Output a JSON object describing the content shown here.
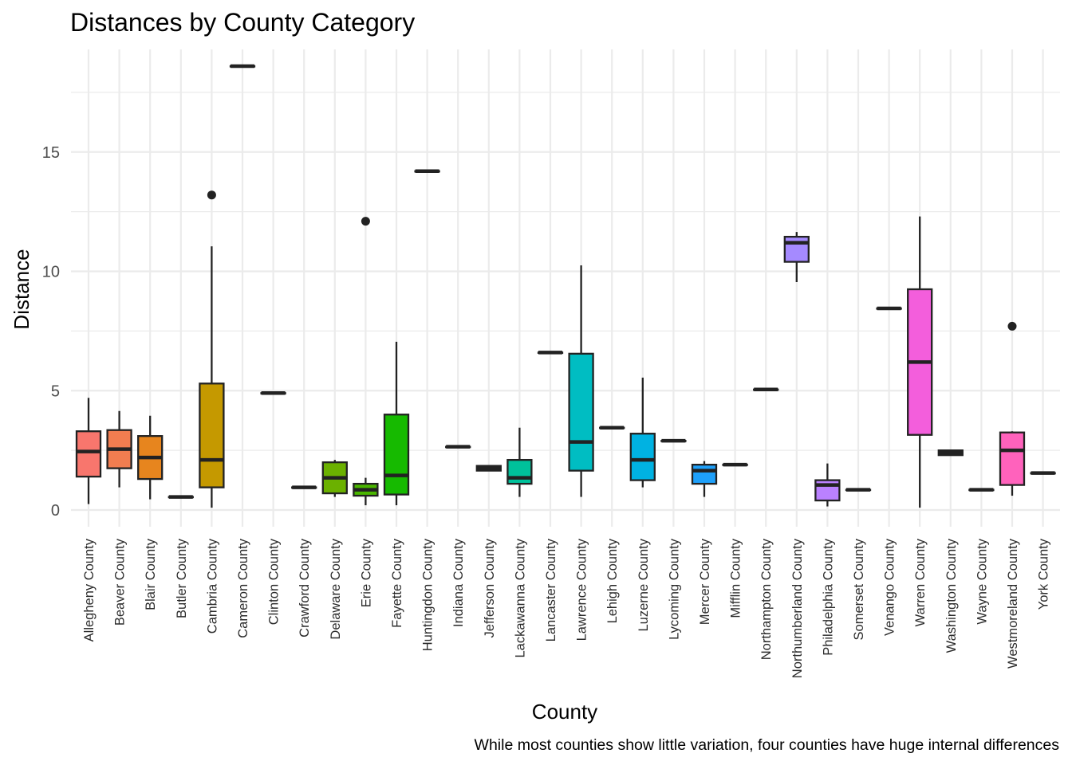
{
  "chart_data": {
    "type": "boxplot",
    "title": "Distances by County Category",
    "xlabel": "County",
    "ylabel": "Distance",
    "caption": "While most counties show little variation, four counties have huge internal differences",
    "ylim": [
      -0.7,
      19.3
    ],
    "yticks": [
      0,
      5,
      10,
      15
    ],
    "grid": true,
    "legend": "none",
    "series": [
      {
        "category": "Allegheny County",
        "fill": "#F8766D",
        "min": 0.25,
        "q1": 1.4,
        "median": 2.45,
        "q3": 3.3,
        "max": 4.7,
        "outliers": []
      },
      {
        "category": "Beaver County",
        "fill": "#F17D50",
        "min": 0.95,
        "q1": 1.75,
        "median": 2.55,
        "q3": 3.35,
        "max": 4.15,
        "outliers": []
      },
      {
        "category": "Blair County",
        "fill": "#E7851E",
        "min": 0.45,
        "q1": 1.3,
        "median": 2.2,
        "q3": 3.1,
        "max": 3.95,
        "outliers": []
      },
      {
        "category": "Butler County",
        "fill": "#D89000",
        "min": 0.55,
        "q1": 0.55,
        "median": 0.55,
        "q3": 0.55,
        "max": 0.55,
        "outliers": []
      },
      {
        "category": "Cambria County",
        "fill": "#C59900",
        "min": 0.1,
        "q1": 0.95,
        "median": 2.1,
        "q3": 5.3,
        "max": 11.05,
        "outliers": [
          13.2
        ]
      },
      {
        "category": "Cameron County",
        "fill": "#B0A100",
        "min": 18.6,
        "q1": 18.6,
        "median": 18.6,
        "q3": 18.6,
        "max": 18.6,
        "outliers": []
      },
      {
        "category": "Clinton County",
        "fill": "#97A900",
        "min": 4.9,
        "q1": 4.9,
        "median": 4.9,
        "q3": 4.9,
        "max": 4.9,
        "outliers": []
      },
      {
        "category": "Crawford County",
        "fill": "#86AD00",
        "min": 0.95,
        "q1": 0.95,
        "median": 0.95,
        "q3": 0.95,
        "max": 0.95,
        "outliers": []
      },
      {
        "category": "Delaware County",
        "fill": "#6BB100",
        "min": 0.55,
        "q1": 0.7,
        "median": 1.35,
        "q3": 2.0,
        "max": 2.1,
        "outliers": []
      },
      {
        "category": "Erie County",
        "fill": "#4AB600",
        "min": 0.2,
        "q1": 0.6,
        "median": 0.85,
        "q3": 1.1,
        "max": 1.35,
        "outliers": [
          12.1
        ]
      },
      {
        "category": "Fayette County",
        "fill": "#16BA00",
        "min": 0.2,
        "q1": 0.65,
        "median": 1.45,
        "q3": 4.0,
        "max": 7.05,
        "outliers": []
      },
      {
        "category": "Huntingdon County",
        "fill": "#00BC4F",
        "min": 14.2,
        "q1": 14.2,
        "median": 14.2,
        "q3": 14.2,
        "max": 14.2,
        "outliers": []
      },
      {
        "category": "Indiana County",
        "fill": "#00BE6C",
        "min": 2.65,
        "q1": 2.65,
        "median": 2.65,
        "q3": 2.65,
        "max": 2.65,
        "outliers": []
      },
      {
        "category": "Jefferson County",
        "fill": "#00C085",
        "min": 1.65,
        "q1": 1.65,
        "median": 1.75,
        "q3": 1.85,
        "max": 1.85,
        "outliers": []
      },
      {
        "category": "Lackawanna County",
        "fill": "#00C19B",
        "min": 0.55,
        "q1": 1.1,
        "median": 1.35,
        "q3": 2.1,
        "max": 3.45,
        "outliers": []
      },
      {
        "category": "Lancaster County",
        "fill": "#00C0AF",
        "min": 6.6,
        "q1": 6.6,
        "median": 6.6,
        "q3": 6.6,
        "max": 6.6,
        "outliers": []
      },
      {
        "category": "Lawrence County",
        "fill": "#00BDC2",
        "min": 0.55,
        "q1": 1.65,
        "median": 2.85,
        "q3": 6.55,
        "max": 10.25,
        "outliers": []
      },
      {
        "category": "Lehigh County",
        "fill": "#00B8D3",
        "min": 3.45,
        "q1": 3.45,
        "median": 3.45,
        "q3": 3.45,
        "max": 3.45,
        "outliers": []
      },
      {
        "category": "Luzerne County",
        "fill": "#00B2E2",
        "min": 0.95,
        "q1": 1.25,
        "median": 2.1,
        "q3": 3.2,
        "max": 5.55,
        "outliers": []
      },
      {
        "category": "Lycoming County",
        "fill": "#00AAEF",
        "min": 2.9,
        "q1": 2.9,
        "median": 2.9,
        "q3": 2.9,
        "max": 2.9,
        "outliers": []
      },
      {
        "category": "Mercer County",
        "fill": "#1EA0FA",
        "min": 0.55,
        "q1": 1.1,
        "median": 1.65,
        "q3": 1.9,
        "max": 2.05,
        "outliers": []
      },
      {
        "category": "Mifflin County",
        "fill": "#619CFF",
        "min": 1.9,
        "q1": 1.9,
        "median": 1.9,
        "q3": 1.9,
        "max": 1.9,
        "outliers": []
      },
      {
        "category": "Northampton County",
        "fill": "#8A93FF",
        "min": 5.05,
        "q1": 5.05,
        "median": 5.05,
        "q3": 5.05,
        "max": 5.05,
        "outliers": []
      },
      {
        "category": "Northumberland County",
        "fill": "#A58AFF",
        "min": 9.55,
        "q1": 10.4,
        "median": 11.2,
        "q3": 11.45,
        "max": 11.65,
        "outliers": []
      },
      {
        "category": "Philadelphia County",
        "fill": "#BA81FF",
        "min": 0.15,
        "q1": 0.4,
        "median": 1.05,
        "q3": 1.25,
        "max": 1.95,
        "outliers": []
      },
      {
        "category": "Somerset County",
        "fill": "#CC78FF",
        "min": 0.85,
        "q1": 0.85,
        "median": 0.85,
        "q3": 0.85,
        "max": 0.85,
        "outliers": []
      },
      {
        "category": "Venango County",
        "fill": "#DB72FB",
        "min": 8.45,
        "q1": 8.45,
        "median": 8.45,
        "q3": 8.45,
        "max": 8.45,
        "outliers": []
      },
      {
        "category": "Warren County",
        "fill": "#F35EDC",
        "min": 0.1,
        "q1": 3.15,
        "median": 6.2,
        "q3": 9.25,
        "max": 12.3,
        "outliers": []
      },
      {
        "category": "Washington County",
        "fill": "#F863D4",
        "min": 2.3,
        "q1": 2.3,
        "median": 2.4,
        "q3": 2.5,
        "max": 2.5,
        "outliers": []
      },
      {
        "category": "Wayne County",
        "fill": "#FD61D1",
        "min": 0.85,
        "q1": 0.85,
        "median": 0.85,
        "q3": 0.85,
        "max": 0.85,
        "outliers": []
      },
      {
        "category": "Westmoreland County",
        "fill": "#FF62BC",
        "min": 0.6,
        "q1": 1.05,
        "median": 2.5,
        "q3": 3.25,
        "max": 3.3,
        "outliers": [
          7.7
        ]
      },
      {
        "category": "York County",
        "fill": "#FF6C91",
        "min": 1.55,
        "q1": 1.55,
        "median": 1.55,
        "q3": 1.55,
        "max": 1.55,
        "outliers": []
      }
    ]
  }
}
